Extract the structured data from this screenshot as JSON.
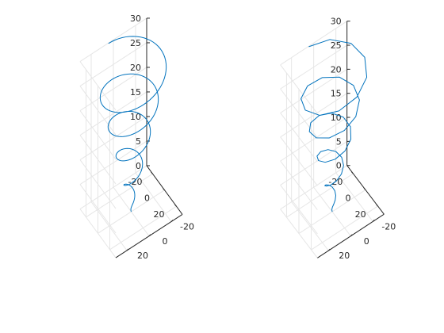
{
  "figure": {
    "background": "#ffffff",
    "axis_color": "#262626",
    "grid_color": "#e6e6e6",
    "line_color": "#0072bd"
  },
  "chart_data": [
    {
      "type": "line3d",
      "view": "3-D default view (azimuth -37.5°, elevation 30°)",
      "grid": true,
      "xlabel": "",
      "ylabel": "",
      "zlabel": "",
      "xlim": [
        -30,
        30
      ],
      "ylim": [
        -30,
        30
      ],
      "zlim": [
        0,
        30
      ],
      "xticks": [
        -20,
        0,
        20
      ],
      "yticks": [
        -20,
        0,
        20
      ],
      "zticks": [
        0,
        5,
        10,
        15,
        20,
        25,
        30
      ],
      "curve": "conical spiral x = t·sin(t), y = t·cos(t), z = t",
      "t_range": [
        0,
        30
      ],
      "sample_step": 0.1,
      "series": [
        {
          "color": "#0072bd"
        }
      ]
    },
    {
      "type": "line3d",
      "view": "3-D default view (azimuth -37.5°, elevation 30°)",
      "grid": true,
      "xlabel": "",
      "ylabel": "",
      "zlabel": "",
      "xlim": [
        -30,
        30
      ],
      "ylim": [
        -30,
        30
      ],
      "zlim": [
        0,
        30
      ],
      "xticks": [
        -20,
        0,
        20
      ],
      "yticks": [
        -20,
        0,
        20
      ],
      "zticks": [
        0,
        5,
        10,
        15,
        20,
        25,
        30
      ],
      "curve": "conical spiral x = t·sin(t), y = t·cos(t), z = t (coarse sampling)",
      "t_range": [
        0,
        30
      ],
      "sample_step": 0.6,
      "series": [
        {
          "color": "#0072bd"
        }
      ]
    }
  ]
}
